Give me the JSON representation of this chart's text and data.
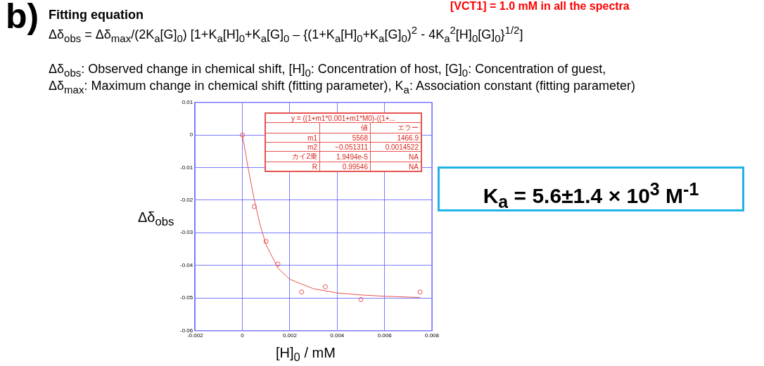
{
  "chart_data": {
    "type": "scatter",
    "title": "Fitting equation",
    "subtitle": "Δδ$_{obs}$ = Δδ$_{max}$/(2K$_{a}$[G]$_{0}$) [1+K$_{a}$[H]$_{0}$+K$_{a}$[G]$_{0}$ – {(1+K$_{a}$[H]$_{0}$+K$_{a}$[G]$_{0}$)$^{2}$ - 4K$_{a}$$^{2}$[H]$_{0}$[G]$_{0}$}$^{1/2}$]",
    "xlabel": "[H]$_{0}$ / mM",
    "ylabel": "Δδ$_{obs}$",
    "annotations": [
      "b)",
      "[VCT1] = 1.0 mM in all the spectra",
      "Δδ$_{obs}$: Observed change in chemical shift, [H]$_{0}$: Concentration of host, [G]$_{0}$: Concentration of guest,",
      "Δδ$_{max}$: Maximum change in chemical shift (fitting parameter), K$_{a}$: Association constant (fitting parameter)",
      "K$_{a}$ = 5.6±1.4 × 10$^{3}$ M$^{-1}$",
      "y = ((1+m1*0.001+m1*M0)-((1+...",
      "値",
      "エラー",
      "m1",
      "5568",
      "1466.9",
      "m2",
      "−0.051311",
      "0.0014522",
      "カイ2乗",
      "1.9494e-5",
      "NA",
      "R",
      "0.99546",
      "NA"
    ],
    "x": [
      0,
      0.0005,
      0.001,
      0.0015,
      0.0025,
      0.0035,
      0.005,
      0.0075
    ],
    "series": [
      {
        "color": "#e8534f",
        "marker": "circle",
        "values": [
          0,
          -0.022,
          -0.0327,
          -0.0396,
          -0.0482,
          -0.0466,
          -0.0505,
          -0.0482
        ]
      },
      {
        "type": "line",
        "color": "#e8534f",
        "x": [
          0,
          0.00025,
          0.0005,
          0.00075,
          0.001,
          0.0015,
          0.002,
          0.003,
          0.004,
          0.005,
          0.006,
          0.0075
        ],
        "values": [
          0,
          -0.0105,
          -0.0198,
          -0.0277,
          -0.0337,
          -0.0409,
          -0.0443,
          -0.0472,
          -0.0485,
          -0.0491,
          -0.0495,
          -0.0499
        ]
      }
    ],
    "xlim": [
      -0.002,
      0.008
    ],
    "xticks": [
      -0.002,
      0,
      0.002,
      0.004,
      0.006,
      0.008
    ],
    "ylim": [
      -0.06,
      0.01
    ],
    "yticks": [
      -0.06,
      -0.05,
      -0.04,
      -0.03,
      -0.02,
      -0.01,
      0,
      0.01
    ],
    "grid": true,
    "legend": false
  }
}
